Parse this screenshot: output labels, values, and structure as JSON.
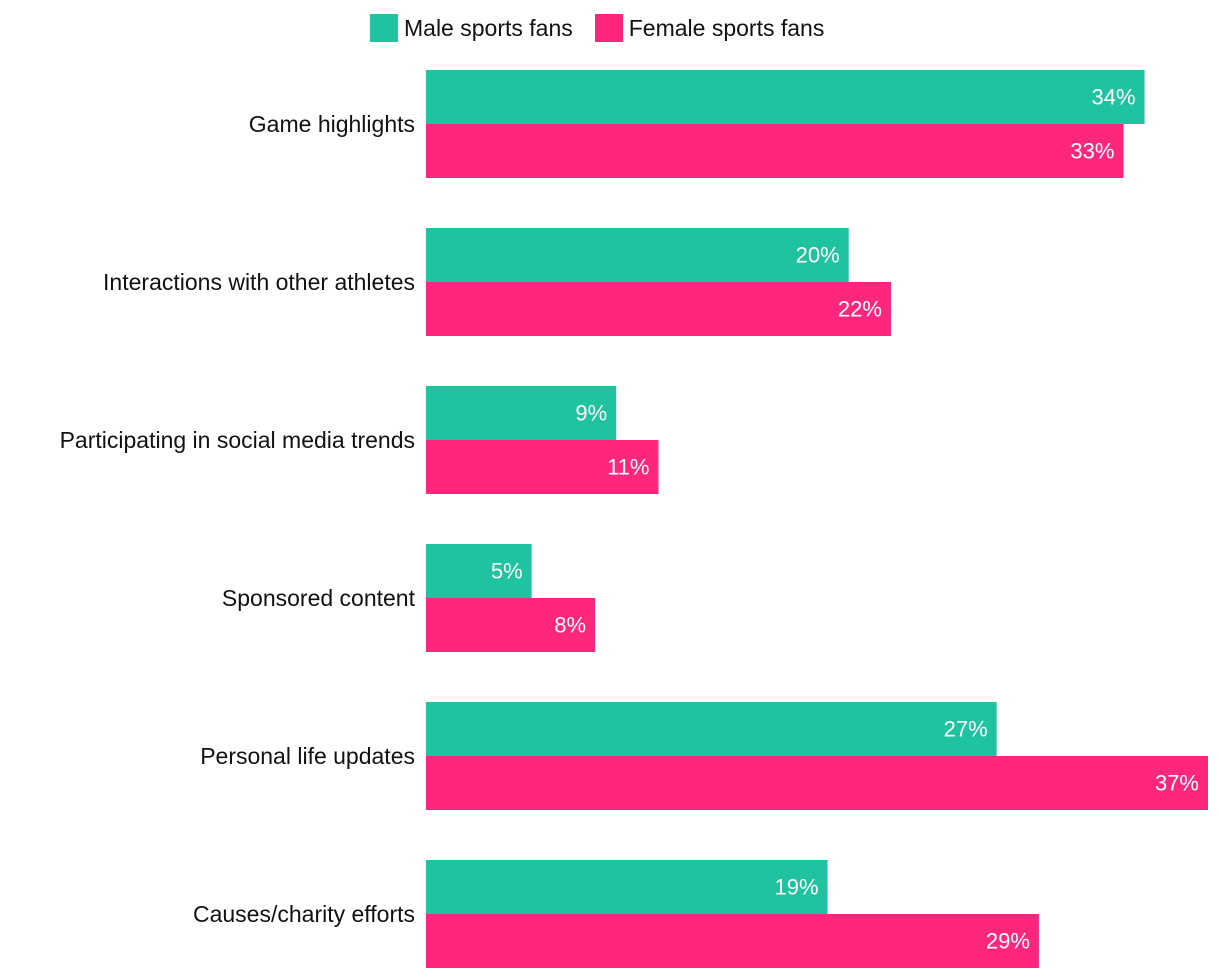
{
  "chart_data": {
    "type": "bar",
    "orientation": "horizontal",
    "categories": [
      "Game highlights",
      "Interactions with other athletes",
      "Participating in social media trends",
      "Sponsored content",
      "Personal life updates",
      "Causes/charity efforts"
    ],
    "series": [
      {
        "name": "Male sports fans",
        "color": "#20c39f",
        "values": [
          34,
          20,
          9,
          5,
          27,
          19
        ],
        "labels": [
          "34%",
          "20%",
          "9%",
          "5%",
          "27%",
          "19%"
        ]
      },
      {
        "name": "Female sports fans",
        "color": "#ff267e",
        "values": [
          33,
          22,
          11,
          8,
          37,
          29
        ],
        "labels": [
          "33%",
          "22%",
          "11%",
          "8%",
          "37%",
          "29%"
        ]
      }
    ],
    "unit": "%",
    "xlim": [
      0,
      37
    ],
    "grid": false,
    "legend_position": "top"
  }
}
